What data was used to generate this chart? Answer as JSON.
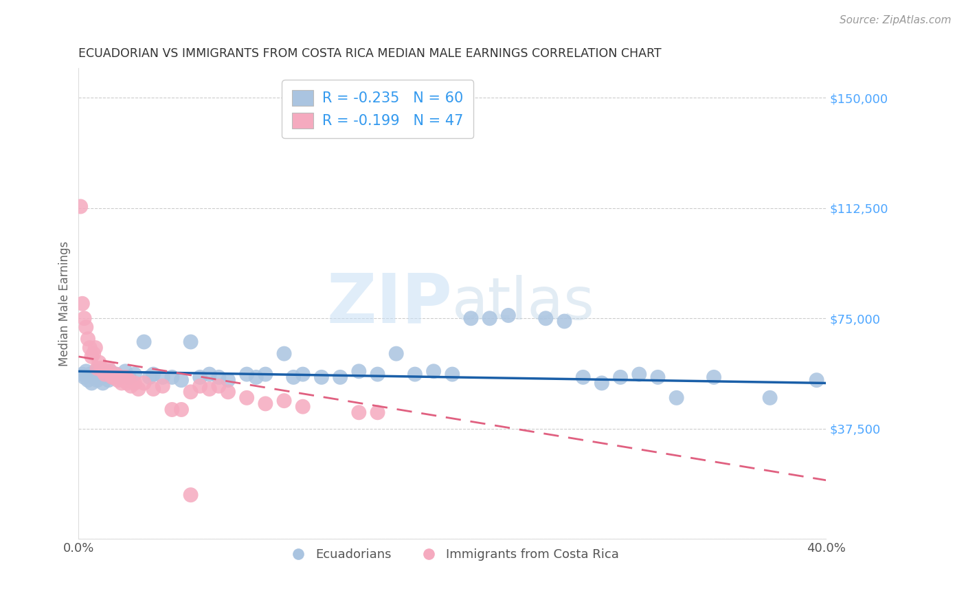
{
  "title": "ECUADORIAN VS IMMIGRANTS FROM COSTA RICA MEDIAN MALE EARNINGS CORRELATION CHART",
  "source_text": "Source: ZipAtlas.com",
  "ylabel": "Median Male Earnings",
  "xlim": [
    0.0,
    0.4
  ],
  "ylim": [
    0,
    160000
  ],
  "yticks": [
    0,
    37500,
    75000,
    112500,
    150000
  ],
  "ytick_labels": [
    "",
    "$37,500",
    "$75,000",
    "$112,500",
    "$150,000"
  ],
  "xticks": [
    0.0,
    0.05,
    0.1,
    0.15,
    0.2,
    0.25,
    0.3,
    0.35,
    0.4
  ],
  "xtick_labels": [
    "0.0%",
    "",
    "",
    "",
    "",
    "",
    "",
    "",
    "40.0%"
  ],
  "blue_color": "#aac4e0",
  "pink_color": "#f5aabf",
  "blue_line_color": "#1a5fa8",
  "pink_line_color": "#e06080",
  "legend_blue_label": "R = -0.235   N = 60",
  "legend_pink_label": "R = -0.199   N = 47",
  "legend_ecuadorians": "Ecuadorians",
  "legend_costa_rica": "Immigrants from Costa Rica",
  "title_color": "#333333",
  "axis_label_color": "#666666",
  "ytick_color": "#4da6ff",
  "grid_color": "#cccccc",
  "blue_scatter": [
    [
      0.002,
      56000
    ],
    [
      0.003,
      55000
    ],
    [
      0.004,
      57000
    ],
    [
      0.005,
      54000
    ],
    [
      0.006,
      56000
    ],
    [
      0.007,
      53000
    ],
    [
      0.008,
      55000
    ],
    [
      0.009,
      57000
    ],
    [
      0.01,
      54000
    ],
    [
      0.011,
      56000
    ],
    [
      0.012,
      55000
    ],
    [
      0.013,
      53000
    ],
    [
      0.015,
      56000
    ],
    [
      0.016,
      54000
    ],
    [
      0.017,
      57000
    ],
    [
      0.018,
      55000
    ],
    [
      0.02,
      56000
    ],
    [
      0.022,
      55000
    ],
    [
      0.025,
      57000
    ],
    [
      0.027,
      55000
    ],
    [
      0.03,
      56000
    ],
    [
      0.035,
      67000
    ],
    [
      0.038,
      55000
    ],
    [
      0.04,
      56000
    ],
    [
      0.045,
      55000
    ],
    [
      0.05,
      55000
    ],
    [
      0.055,
      54000
    ],
    [
      0.06,
      67000
    ],
    [
      0.065,
      55000
    ],
    [
      0.07,
      56000
    ],
    [
      0.075,
      55000
    ],
    [
      0.08,
      54000
    ],
    [
      0.09,
      56000
    ],
    [
      0.095,
      55000
    ],
    [
      0.1,
      56000
    ],
    [
      0.11,
      63000
    ],
    [
      0.115,
      55000
    ],
    [
      0.12,
      56000
    ],
    [
      0.13,
      55000
    ],
    [
      0.14,
      55000
    ],
    [
      0.15,
      57000
    ],
    [
      0.16,
      56000
    ],
    [
      0.17,
      63000
    ],
    [
      0.18,
      56000
    ],
    [
      0.19,
      57000
    ],
    [
      0.2,
      56000
    ],
    [
      0.21,
      75000
    ],
    [
      0.22,
      75000
    ],
    [
      0.23,
      76000
    ],
    [
      0.25,
      75000
    ],
    [
      0.26,
      74000
    ],
    [
      0.27,
      55000
    ],
    [
      0.28,
      53000
    ],
    [
      0.29,
      55000
    ],
    [
      0.3,
      56000
    ],
    [
      0.31,
      55000
    ],
    [
      0.32,
      48000
    ],
    [
      0.34,
      55000
    ],
    [
      0.37,
      48000
    ],
    [
      0.395,
      54000
    ]
  ],
  "pink_scatter": [
    [
      0.001,
      113000
    ],
    [
      0.002,
      80000
    ],
    [
      0.003,
      75000
    ],
    [
      0.004,
      72000
    ],
    [
      0.005,
      68000
    ],
    [
      0.006,
      65000
    ],
    [
      0.007,
      62000
    ],
    [
      0.008,
      63000
    ],
    [
      0.009,
      65000
    ],
    [
      0.01,
      58000
    ],
    [
      0.011,
      60000
    ],
    [
      0.012,
      58000
    ],
    [
      0.013,
      57000
    ],
    [
      0.014,
      56000
    ],
    [
      0.015,
      57000
    ],
    [
      0.016,
      58000
    ],
    [
      0.017,
      56000
    ],
    [
      0.018,
      55000
    ],
    [
      0.019,
      55000
    ],
    [
      0.02,
      56000
    ],
    [
      0.021,
      54000
    ],
    [
      0.022,
      55000
    ],
    [
      0.023,
      53000
    ],
    [
      0.024,
      54000
    ],
    [
      0.025,
      55000
    ],
    [
      0.026,
      53000
    ],
    [
      0.027,
      54000
    ],
    [
      0.028,
      52000
    ],
    [
      0.03,
      53000
    ],
    [
      0.032,
      51000
    ],
    [
      0.035,
      53000
    ],
    [
      0.04,
      51000
    ],
    [
      0.045,
      52000
    ],
    [
      0.05,
      44000
    ],
    [
      0.055,
      44000
    ],
    [
      0.06,
      50000
    ],
    [
      0.065,
      52000
    ],
    [
      0.07,
      51000
    ],
    [
      0.075,
      52000
    ],
    [
      0.08,
      50000
    ],
    [
      0.09,
      48000
    ],
    [
      0.1,
      46000
    ],
    [
      0.11,
      47000
    ],
    [
      0.12,
      45000
    ],
    [
      0.15,
      43000
    ],
    [
      0.16,
      43000
    ],
    [
      0.06,
      15000
    ]
  ],
  "blue_slope": -10000,
  "blue_intercept": 57000,
  "pink_slope": -105000,
  "pink_intercept": 62000
}
